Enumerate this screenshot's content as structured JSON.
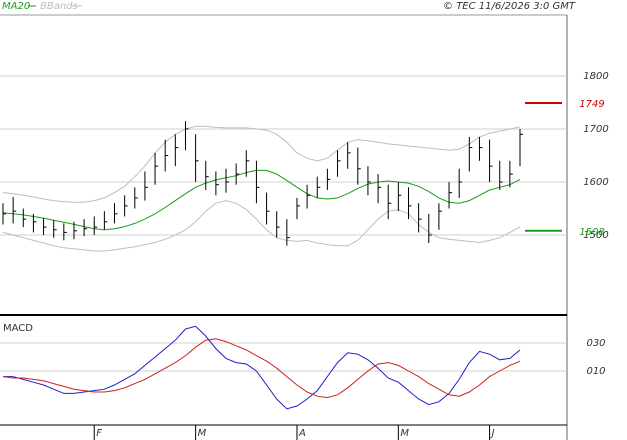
{
  "header": {
    "source": "© TEC 11/6/2026 3:0 GMT"
  },
  "chart_data": [
    {
      "type": "hlc",
      "categories": [
        null,
        null,
        null,
        null,
        null,
        null,
        null,
        null,
        null,
        "F",
        null,
        null,
        null,
        null,
        null,
        null,
        null,
        null,
        null,
        "M",
        null,
        null,
        null,
        null,
        null,
        null,
        null,
        null,
        null,
        "A",
        null,
        null,
        null,
        null,
        null,
        null,
        null,
        null,
        null,
        "M",
        null,
        null,
        null,
        null,
        null,
        null,
        null,
        null,
        "J",
        null,
        null,
        null
      ],
      "close": [
        1540,
        1545,
        1530,
        1525,
        1515,
        1510,
        1505,
        1508,
        1512,
        1515,
        1525,
        1540,
        1555,
        1570,
        1590,
        1630,
        1650,
        1665,
        1700,
        1640,
        1610,
        1595,
        1600,
        1615,
        1640,
        1590,
        1545,
        1515,
        1495,
        1555,
        1575,
        1590,
        1605,
        1640,
        1655,
        1625,
        1600,
        1590,
        1560,
        1575,
        1555,
        1530,
        1500,
        1545,
        1580,
        1600,
        1665,
        1665,
        1630,
        1600,
        1615,
        1690
      ],
      "high": [
        1560,
        1572,
        1550,
        1540,
        1532,
        1528,
        1522,
        1525,
        1530,
        1535,
        1545,
        1560,
        1575,
        1590,
        1620,
        1655,
        1680,
        1690,
        1715,
        1690,
        1640,
        1620,
        1625,
        1635,
        1660,
        1640,
        1580,
        1545,
        1530,
        1570,
        1595,
        1610,
        1625,
        1660,
        1675,
        1665,
        1630,
        1615,
        1595,
        1600,
        1590,
        1560,
        1540,
        1560,
        1600,
        1625,
        1685,
        1685,
        1680,
        1640,
        1640,
        1700
      ],
      "low": [
        1520,
        1522,
        1515,
        1505,
        1500,
        1495,
        1490,
        1492,
        1498,
        1500,
        1510,
        1522,
        1535,
        1550,
        1565,
        1595,
        1620,
        1630,
        1660,
        1600,
        1585,
        1575,
        1580,
        1595,
        1610,
        1560,
        1520,
        1495,
        1480,
        1530,
        1550,
        1570,
        1585,
        1610,
        1625,
        1595,
        1575,
        1560,
        1530,
        1545,
        1530,
        1505,
        1485,
        1510,
        1550,
        1570,
        1620,
        1640,
        1600,
        1585,
        1590,
        1630
      ],
      "series": [
        {
          "name": "MA20",
          "color": "#1a9c1a",
          "values": [
            1542,
            1540,
            1538,
            1535,
            1532,
            1528,
            1524,
            1520,
            1516,
            1512,
            1510,
            1512,
            1516,
            1522,
            1530,
            1540,
            1552,
            1565,
            1578,
            1590,
            1598,
            1604,
            1608,
            1612,
            1618,
            1622,
            1622,
            1615,
            1603,
            1590,
            1578,
            1570,
            1568,
            1570,
            1578,
            1588,
            1596,
            1600,
            1602,
            1600,
            1598,
            1592,
            1582,
            1570,
            1562,
            1560,
            1565,
            1575,
            1585,
            1590,
            1595,
            1605
          ]
        }
      ],
      "bands": {
        "name": "BBands",
        "color": "#bdbdbd",
        "upper": [
          1580,
          1578,
          1575,
          1572,
          1568,
          1565,
          1563,
          1562,
          1562,
          1565,
          1570,
          1580,
          1592,
          1610,
          1630,
          1655,
          1675,
          1690,
          1700,
          1705,
          1705,
          1703,
          1702,
          1702,
          1702,
          1700,
          1698,
          1690,
          1675,
          1655,
          1645,
          1640,
          1645,
          1660,
          1675,
          1680,
          1678,
          1675,
          1672,
          1670,
          1668,
          1666,
          1664,
          1662,
          1660,
          1662,
          1672,
          1685,
          1692,
          1696,
          1700,
          1704
        ],
        "lower": [
          1505,
          1500,
          1495,
          1490,
          1485,
          1480,
          1476,
          1474,
          1472,
          1470,
          1470,
          1472,
          1475,
          1478,
          1482,
          1486,
          1492,
          1500,
          1510,
          1525,
          1545,
          1560,
          1565,
          1560,
          1548,
          1530,
          1510,
          1495,
          1490,
          1488,
          1490,
          1485,
          1482,
          1480,
          1480,
          1490,
          1510,
          1530,
          1545,
          1548,
          1540,
          1520,
          1505,
          1495,
          1492,
          1490,
          1488,
          1486,
          1490,
          1495,
          1505,
          1515
        ]
      },
      "levels": [
        {
          "value": 1749,
          "color": "#d00000"
        },
        {
          "value": 1508,
          "color": "#1a9c1a"
        }
      ],
      "ylim": [
        1353,
        1915
      ],
      "yticks": [
        1500,
        1600,
        1700,
        1800
      ],
      "grid": true
    },
    {
      "type": "line",
      "title": "MACD",
      "series": [
        {
          "color": "#2020c8",
          "values": [
            6,
            6,
            4,
            2,
            0,
            -3,
            -6,
            -6,
            -5,
            -4,
            -3,
            0,
            4,
            8,
            14,
            20,
            26,
            32,
            40,
            42,
            35,
            26,
            19,
            16,
            15,
            10,
            0,
            -10,
            -17,
            -15,
            -10,
            -4,
            6,
            16,
            23,
            22,
            18,
            12,
            5,
            2,
            -4,
            -10,
            -14,
            -12,
            -6,
            4,
            16,
            24,
            22,
            18,
            19,
            25
          ]
        },
        {
          "color": "#d02020",
          "values": [
            6,
            5,
            5,
            4,
            3,
            1,
            -1,
            -3,
            -4,
            -5,
            -5,
            -4,
            -2,
            1,
            4,
            8,
            12,
            16,
            21,
            27,
            32,
            33,
            31,
            28,
            25,
            21,
            17,
            12,
            6,
            0,
            -5,
            -8,
            -9,
            -7,
            -2,
            4,
            10,
            15,
            16,
            14,
            10,
            6,
            1,
            -3,
            -7,
            -8,
            -5,
            0,
            6,
            10,
            14,
            17
          ]
        }
      ],
      "ylim": [
        -28.6,
        47.9
      ],
      "yticks": [
        {
          "value": 30,
          "label": "030"
        },
        {
          "value": 10,
          "label": "010"
        }
      ],
      "grid": true
    }
  ]
}
